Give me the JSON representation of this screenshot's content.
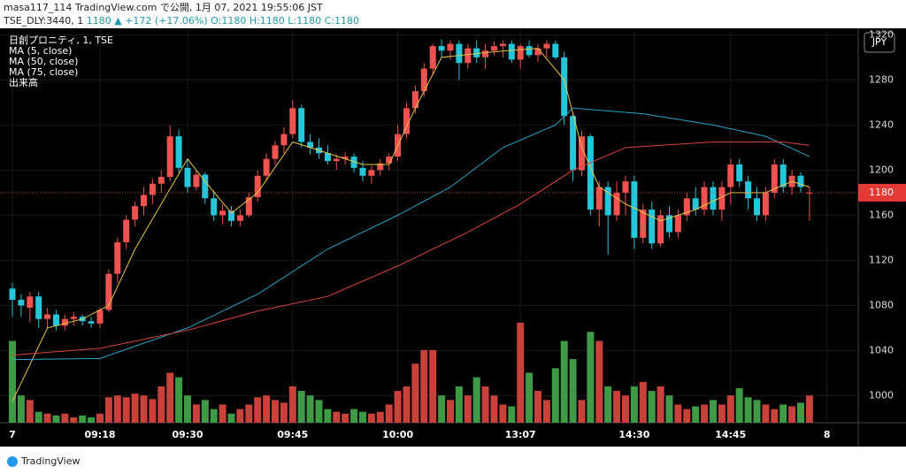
{
  "header": {
    "line1": "masa117_114 TradingView.com で公開, 1月 07, 2021 19:55:06 JST",
    "symbol": "TSE_DLY:3440, 1",
    "last": "1180",
    "change": "▲ +172 (+17.06%)",
    "ohlc": "O:1180 H:1180 L:1180 C:1180"
  },
  "legend": [
    "日創プロニティ, 1, TSE",
    "MA (5, close)",
    "MA (50, close)",
    "MA (75, close)",
    "出来高"
  ],
  "currency": "JPY",
  "brand": "TradingView",
  "chart_data": {
    "type": "candlestick",
    "categories": [
      "7",
      null,
      null,
      null,
      null,
      null,
      null,
      null,
      null,
      null,
      "09:18",
      null,
      null,
      null,
      null,
      null,
      null,
      null,
      null,
      null,
      "09:30",
      null,
      null,
      null,
      null,
      null,
      null,
      null,
      null,
      null,
      null,
      null,
      "09:45",
      null,
      null,
      null,
      null,
      null,
      null,
      null,
      null,
      null,
      null,
      null,
      "10:00",
      null,
      null,
      null,
      null,
      null,
      null,
      null,
      null,
      null,
      null,
      null,
      null,
      null,
      "13:07",
      null,
      null,
      null,
      null,
      null,
      null,
      null,
      null,
      null,
      null,
      null,
      null,
      "14:30",
      null,
      null,
      null,
      null,
      null,
      null,
      null,
      null,
      null,
      null,
      "14:45",
      null,
      null,
      null,
      null,
      null,
      null,
      null,
      null,
      null,
      null,
      "8"
    ],
    "open": [
      1095,
      1085,
      1078,
      1088,
      1068,
      1072,
      1062,
      1068,
      1070,
      1066,
      1064,
      1076,
      1108,
      1136,
      1156,
      1168,
      1178,
      1188,
      1194,
      1230,
      1202,
      1185,
      1196,
      1175,
      1160,
      1164,
      1155,
      1160,
      1176,
      1195,
      1210,
      1222,
      1232,
      1255,
      1225,
      1220,
      1215,
      1208,
      1210,
      1212,
      1202,
      1195,
      1200,
      1206,
      1212,
      1232,
      1255,
      1270,
      1290,
      1310,
      1306,
      1312,
      1295,
      1308,
      1300,
      1306,
      1310,
      1312,
      1298,
      1310,
      1302,
      1308,
      1312,
      1300,
      1248,
      1200,
      1230,
      1165,
      1185,
      1160,
      1180,
      1190,
      1140,
      1165,
      1135,
      1160,
      1145,
      1160,
      1175,
      1165,
      1185,
      1165,
      1185,
      1205,
      1190,
      1175,
      1160,
      1180,
      1205,
      1185,
      1195,
      1180,
      null,
      null
    ],
    "high": [
      1100,
      1090,
      1092,
      1092,
      1078,
      1076,
      1072,
      1074,
      1072,
      1070,
      1078,
      1112,
      1140,
      1160,
      1172,
      1185,
      1192,
      1200,
      1240,
      1236,
      1210,
      1200,
      1198,
      1182,
      1170,
      1168,
      1165,
      1180,
      1200,
      1215,
      1226,
      1238,
      1262,
      1258,
      1232,
      1228,
      1222,
      1214,
      1216,
      1215,
      1208,
      1204,
      1210,
      1215,
      1240,
      1260,
      1275,
      1295,
      1312,
      1316,
      1315,
      1315,
      1312,
      1315,
      1312,
      1314,
      1315,
      1315,
      1312,
      1315,
      1312,
      1315,
      1315,
      1305,
      1250,
      1235,
      1232,
      1190,
      1190,
      1190,
      1195,
      1195,
      1170,
      1172,
      1165,
      1168,
      1165,
      1180,
      1185,
      1190,
      1190,
      1190,
      1210,
      1210,
      1195,
      1185,
      1185,
      1210,
      1210,
      1200,
      1198,
      1185,
      null,
      null
    ],
    "low": [
      1070,
      1070,
      1065,
      1060,
      1060,
      1058,
      1058,
      1062,
      1062,
      1060,
      1060,
      1074,
      1100,
      1130,
      1150,
      1160,
      1170,
      1180,
      1190,
      1198,
      1180,
      1182,
      1170,
      1155,
      1152,
      1150,
      1150,
      1158,
      1172,
      1190,
      1205,
      1215,
      1228,
      1220,
      1214,
      1210,
      1205,
      1200,
      1205,
      1198,
      1190,
      1188,
      1195,
      1200,
      1208,
      1228,
      1250,
      1265,
      1285,
      1300,
      1298,
      1280,
      1290,
      1295,
      1290,
      1302,
      1300,
      1295,
      1290,
      1300,
      1296,
      1300,
      1298,
      1240,
      1190,
      1195,
      1160,
      1150,
      1125,
      1155,
      1160,
      1130,
      1135,
      1130,
      1132,
      1140,
      1140,
      1155,
      1160,
      1160,
      1160,
      1155,
      1170,
      1185,
      1165,
      1155,
      1155,
      1175,
      1180,
      1178,
      1180,
      1155,
      null,
      null
    ],
    "close": [
      1085,
      1080,
      1088,
      1068,
      1072,
      1062,
      1068,
      1070,
      1066,
      1064,
      1076,
      1108,
      1136,
      1156,
      1168,
      1178,
      1188,
      1194,
      1230,
      1202,
      1185,
      1196,
      1175,
      1160,
      1164,
      1155,
      1160,
      1176,
      1195,
      1210,
      1222,
      1232,
      1255,
      1225,
      1220,
      1215,
      1208,
      1210,
      1212,
      1202,
      1195,
      1200,
      1206,
      1212,
      1232,
      1255,
      1270,
      1290,
      1310,
      1306,
      1312,
      1295,
      1308,
      1300,
      1306,
      1310,
      1312,
      1298,
      1310,
      1302,
      1308,
      1312,
      1300,
      1248,
      1200,
      1230,
      1165,
      1185,
      1160,
      1180,
      1190,
      1140,
      1165,
      1135,
      1160,
      1145,
      1160,
      1175,
      1165,
      1185,
      1165,
      1185,
      1205,
      1190,
      1175,
      1160,
      1180,
      1205,
      1185,
      1195,
      1185,
      1180,
      null,
      null
    ],
    "volume": [
      90,
      30,
      25,
      12,
      10,
      8,
      10,
      6,
      8,
      6,
      10,
      28,
      30,
      28,
      32,
      30,
      26,
      40,
      55,
      50,
      30,
      20,
      25,
      15,
      20,
      10,
      15,
      20,
      28,
      30,
      25,
      22,
      40,
      35,
      30,
      25,
      15,
      12,
      10,
      15,
      12,
      10,
      12,
      20,
      35,
      40,
      65,
      80,
      80,
      30,
      25,
      40,
      30,
      50,
      40,
      30,
      20,
      18,
      110,
      55,
      35,
      25,
      60,
      90,
      70,
      25,
      100,
      90,
      40,
      35,
      30,
      40,
      45,
      35,
      40,
      30,
      20,
      15,
      18,
      20,
      25,
      20,
      30,
      38,
      28,
      25,
      20,
      15,
      20,
      18,
      22,
      30,
      null,
      null
    ],
    "up_color": "#ef5350",
    "down_color": "#26c6da",
    "volume_up_color": "#c8413b",
    "volume_down_color": "#3f9a46",
    "series": [
      {
        "name": "MA (5, close)",
        "color": "#e8c547",
        "x": [
          0,
          4,
          8,
          11,
          14,
          17,
          20,
          22,
          25,
          28,
          32,
          36,
          40,
          43,
          46,
          49,
          55,
          60,
          63,
          65,
          67,
          70,
          74,
          78,
          82,
          86,
          89,
          91
        ],
        "values": [
          995,
          1060,
          1068,
          1080,
          1130,
          1170,
          1210,
          1190,
          1162,
          1180,
          1225,
          1215,
          1205,
          1205,
          1255,
          1300,
          1305,
          1308,
          1280,
          1220,
          1185,
          1170,
          1155,
          1165,
          1180,
          1180,
          1190,
          1185
        ]
      },
      {
        "name": "MA (50, close)",
        "color": "#26a6c9",
        "x": [
          0,
          10,
          20,
          28,
          36,
          44,
          50,
          56,
          62,
          64,
          72,
          80,
          86,
          91
        ],
        "values": [
          1032,
          1033,
          1060,
          1090,
          1130,
          1160,
          1185,
          1220,
          1240,
          1255,
          1250,
          1240,
          1230,
          1212
        ]
      },
      {
        "name": "MA (75, close)",
        "color": "#d9443a",
        "x": [
          0,
          10,
          20,
          28,
          36,
          44,
          52,
          58,
          64,
          70,
          80,
          88,
          91
        ],
        "values": [
          1036,
          1042,
          1058,
          1075,
          1088,
          1115,
          1145,
          1170,
          1200,
          1220,
          1225,
          1225,
          1222
        ]
      }
    ],
    "last_price": 1180,
    "ylim": [
      976,
      1325
    ],
    "yticks": [
      1000,
      1040,
      1080,
      1120,
      1160,
      1200,
      1240,
      1280,
      1320
    ],
    "grid": true
  }
}
